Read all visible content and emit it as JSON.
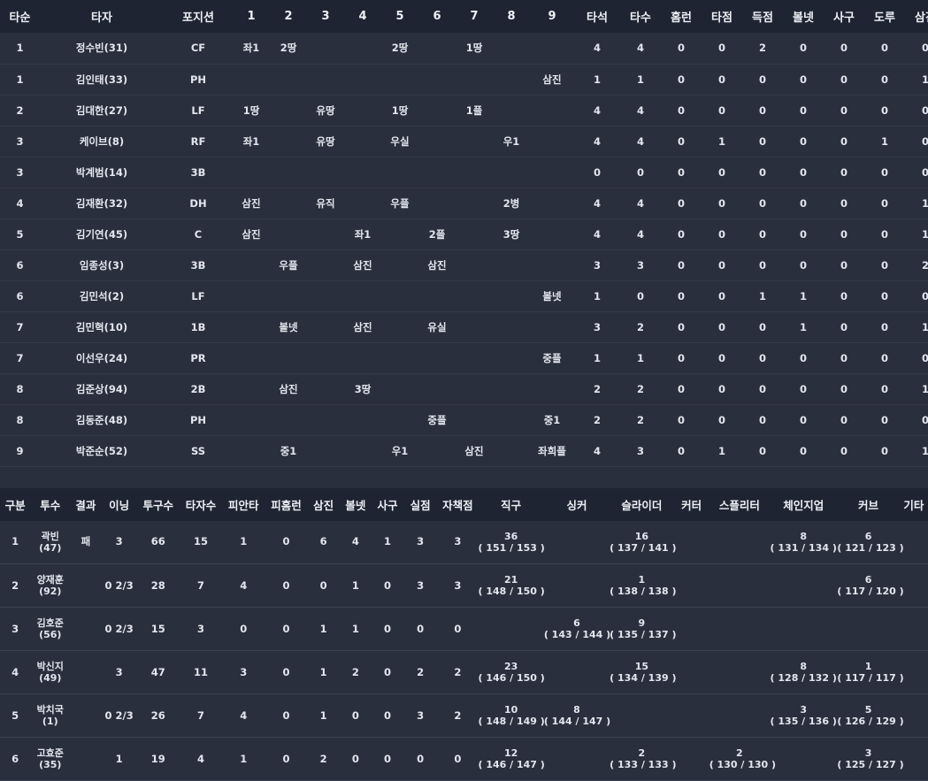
{
  "colors": {
    "background": "#2a2f3d",
    "header": "#1f2433",
    "highlight": "#e12424"
  },
  "batting": {
    "headers": [
      "타순",
      "타자",
      "포지션",
      "1",
      "2",
      "3",
      "4",
      "5",
      "6",
      "7",
      "8",
      "9",
      "타석",
      "타수",
      "홈런",
      "타점",
      "득점",
      "볼넷",
      "사구",
      "도루",
      "삼진"
    ],
    "rows": [
      {
        "order": "1",
        "name": "정수빈(31)",
        "pos": "CF",
        "inn": [
          {
            "t": "좌1",
            "hit": true
          },
          {
            "t": "2땅"
          },
          {
            "t": ""
          },
          {
            "t": ""
          },
          {
            "t": "2땅"
          },
          {
            "t": ""
          },
          {
            "t": "1땅"
          },
          {
            "t": ""
          },
          {
            "t": ""
          }
        ],
        "stats": [
          "4",
          "4",
          "0",
          "0",
          "2",
          "0",
          "0",
          "0",
          "0"
        ]
      },
      {
        "order": "1",
        "name": "김인태(33)",
        "pos": "PH",
        "inn": [
          {
            "t": ""
          },
          {
            "t": ""
          },
          {
            "t": ""
          },
          {
            "t": ""
          },
          {
            "t": ""
          },
          {
            "t": ""
          },
          {
            "t": ""
          },
          {
            "t": ""
          },
          {
            "t": "삼진"
          }
        ],
        "stats": [
          "1",
          "1",
          "0",
          "0",
          "0",
          "0",
          "0",
          "0",
          "1"
        ]
      },
      {
        "order": "2",
        "name": "김대한(27)",
        "pos": "LF",
        "inn": [
          {
            "t": "1땅"
          },
          {
            "t": ""
          },
          {
            "t": "유땅"
          },
          {
            "t": ""
          },
          {
            "t": "1땅"
          },
          {
            "t": ""
          },
          {
            "t": "1플"
          },
          {
            "t": ""
          },
          {
            "t": ""
          }
        ],
        "stats": [
          "4",
          "4",
          "0",
          "0",
          "0",
          "0",
          "0",
          "0",
          "0"
        ]
      },
      {
        "order": "3",
        "name": "케이브(8)",
        "pos": "RF",
        "inn": [
          {
            "t": "좌1",
            "hit": true
          },
          {
            "t": ""
          },
          {
            "t": "유땅"
          },
          {
            "t": ""
          },
          {
            "t": "우실"
          },
          {
            "t": ""
          },
          {
            "t": ""
          },
          {
            "t": "우1",
            "hit": true
          },
          {
            "t": ""
          }
        ],
        "stats": [
          "4",
          "4",
          "0",
          "1",
          "0",
          "0",
          "0",
          "1",
          "0"
        ]
      },
      {
        "order": "3",
        "name": "박계범(14)",
        "pos": "3B",
        "inn": [
          {
            "t": ""
          },
          {
            "t": ""
          },
          {
            "t": ""
          },
          {
            "t": ""
          },
          {
            "t": ""
          },
          {
            "t": ""
          },
          {
            "t": ""
          },
          {
            "t": ""
          },
          {
            "t": ""
          }
        ],
        "stats": [
          "0",
          "0",
          "0",
          "0",
          "0",
          "0",
          "0",
          "0",
          "0"
        ]
      },
      {
        "order": "4",
        "name": "김재환(32)",
        "pos": "DH",
        "inn": [
          {
            "t": "삼진"
          },
          {
            "t": ""
          },
          {
            "t": "유직"
          },
          {
            "t": ""
          },
          {
            "t": "우플"
          },
          {
            "t": ""
          },
          {
            "t": ""
          },
          {
            "t": "2병"
          },
          {
            "t": ""
          }
        ],
        "stats": [
          "4",
          "4",
          "0",
          "0",
          "0",
          "0",
          "0",
          "0",
          "1"
        ]
      },
      {
        "order": "5",
        "name": "김기연(45)",
        "pos": "C",
        "inn": [
          {
            "t": "삼진"
          },
          {
            "t": ""
          },
          {
            "t": ""
          },
          {
            "t": "좌1",
            "hit": true
          },
          {
            "t": ""
          },
          {
            "t": "2플"
          },
          {
            "t": ""
          },
          {
            "t": "3땅"
          },
          {
            "t": ""
          }
        ],
        "stats": [
          "4",
          "4",
          "0",
          "0",
          "0",
          "0",
          "0",
          "0",
          "1"
        ]
      },
      {
        "order": "6",
        "name": "임종성(3)",
        "pos": "3B",
        "inn": [
          {
            "t": ""
          },
          {
            "t": "우플"
          },
          {
            "t": ""
          },
          {
            "t": "삼진"
          },
          {
            "t": ""
          },
          {
            "t": "삼진"
          },
          {
            "t": ""
          },
          {
            "t": ""
          },
          {
            "t": ""
          }
        ],
        "stats": [
          "3",
          "3",
          "0",
          "0",
          "0",
          "0",
          "0",
          "0",
          "2"
        ]
      },
      {
        "order": "6",
        "name": "김민석(2)",
        "pos": "LF",
        "inn": [
          {
            "t": ""
          },
          {
            "t": ""
          },
          {
            "t": ""
          },
          {
            "t": ""
          },
          {
            "t": ""
          },
          {
            "t": ""
          },
          {
            "t": ""
          },
          {
            "t": ""
          },
          {
            "t": "볼넷"
          }
        ],
        "stats": [
          "1",
          "0",
          "0",
          "0",
          "1",
          "1",
          "0",
          "0",
          "0"
        ]
      },
      {
        "order": "7",
        "name": "김민혁(10)",
        "pos": "1B",
        "inn": [
          {
            "t": ""
          },
          {
            "t": "볼넷"
          },
          {
            "t": ""
          },
          {
            "t": "삼진"
          },
          {
            "t": ""
          },
          {
            "t": "유실"
          },
          {
            "t": ""
          },
          {
            "t": ""
          },
          {
            "t": ""
          }
        ],
        "stats": [
          "3",
          "2",
          "0",
          "0",
          "0",
          "1",
          "0",
          "0",
          "1"
        ]
      },
      {
        "order": "7",
        "name": "이선우(24)",
        "pos": "PR",
        "inn": [
          {
            "t": ""
          },
          {
            "t": ""
          },
          {
            "t": ""
          },
          {
            "t": ""
          },
          {
            "t": ""
          },
          {
            "t": ""
          },
          {
            "t": ""
          },
          {
            "t": ""
          },
          {
            "t": "중플"
          }
        ],
        "stats": [
          "1",
          "1",
          "0",
          "0",
          "0",
          "0",
          "0",
          "0",
          "0"
        ]
      },
      {
        "order": "8",
        "name": "김준상(94)",
        "pos": "2B",
        "inn": [
          {
            "t": ""
          },
          {
            "t": "삼진"
          },
          {
            "t": ""
          },
          {
            "t": "3땅"
          },
          {
            "t": ""
          },
          {
            "t": ""
          },
          {
            "t": ""
          },
          {
            "t": ""
          },
          {
            "t": ""
          }
        ],
        "stats": [
          "2",
          "2",
          "0",
          "0",
          "0",
          "0",
          "0",
          "0",
          "1"
        ]
      },
      {
        "order": "8",
        "name": "김동준(48)",
        "pos": "PH",
        "inn": [
          {
            "t": ""
          },
          {
            "t": ""
          },
          {
            "t": ""
          },
          {
            "t": ""
          },
          {
            "t": ""
          },
          {
            "t": "중플"
          },
          {
            "t": ""
          },
          {
            "t": ""
          },
          {
            "t": "중1",
            "hit": true
          }
        ],
        "stats": [
          "2",
          "2",
          "0",
          "0",
          "0",
          "0",
          "0",
          "0",
          "0"
        ]
      },
      {
        "order": "9",
        "name": "박준순(52)",
        "pos": "SS",
        "inn": [
          {
            "t": ""
          },
          {
            "t": "중1",
            "hit": true
          },
          {
            "t": ""
          },
          {
            "t": ""
          },
          {
            "t": "우1",
            "hit": true
          },
          {
            "t": ""
          },
          {
            "t": "삼진"
          },
          {
            "t": ""
          },
          {
            "t": "좌희플"
          }
        ],
        "stats": [
          "4",
          "3",
          "0",
          "1",
          "0",
          "0",
          "0",
          "0",
          "1"
        ]
      }
    ]
  },
  "pitching": {
    "headers": [
      "구분",
      "투수",
      "결과",
      "이닝",
      "투구수",
      "타자수",
      "피안타",
      "피홈런",
      "삼진",
      "볼넷",
      "사구",
      "실점",
      "자책점",
      "직구",
      "싱커",
      "슬라이더",
      "커터",
      "스플리터",
      "체인지업",
      "커브",
      "기타"
    ],
    "rows": [
      {
        "no": "1",
        "name": "곽빈",
        "num": "(47)",
        "result": "패",
        "inning": "3",
        "stats": [
          "66",
          "15",
          "1",
          "0",
          "6",
          "4",
          "1",
          "3",
          "3"
        ],
        "pitches": [
          {
            "c": "36",
            "s": "( 151 / 153 )"
          },
          {
            "c": "",
            "s": ""
          },
          {
            "c": "16",
            "s": "( 137 / 141 )"
          },
          {
            "c": "",
            "s": ""
          },
          {
            "c": "",
            "s": ""
          },
          {
            "c": "8",
            "s": "( 131 / 134 )"
          },
          {
            "c": "6",
            "s": "( 121 / 123 )"
          },
          {
            "c": "",
            "s": ""
          }
        ]
      },
      {
        "no": "2",
        "name": "양재훈",
        "num": "(92)",
        "result": "",
        "inning": "0 2/3",
        "stats": [
          "28",
          "7",
          "4",
          "0",
          "0",
          "1",
          "0",
          "3",
          "3"
        ],
        "pitches": [
          {
            "c": "21",
            "s": "( 148 / 150 )"
          },
          {
            "c": "",
            "s": ""
          },
          {
            "c": "1",
            "s": "( 138 / 138 )"
          },
          {
            "c": "",
            "s": ""
          },
          {
            "c": "",
            "s": ""
          },
          {
            "c": "",
            "s": ""
          },
          {
            "c": "6",
            "s": "( 117 / 120 )"
          },
          {
            "c": "",
            "s": ""
          }
        ]
      },
      {
        "no": "3",
        "name": "김호준",
        "num": "(56)",
        "result": "",
        "inning": "0 2/3",
        "stats": [
          "15",
          "3",
          "0",
          "0",
          "1",
          "1",
          "0",
          "0",
          "0"
        ],
        "pitches": [
          {
            "c": "",
            "s": ""
          },
          {
            "c": "6",
            "s": "( 143 / 144 )"
          },
          {
            "c": "9",
            "s": "( 135 / 137 )"
          },
          {
            "c": "",
            "s": ""
          },
          {
            "c": "",
            "s": ""
          },
          {
            "c": "",
            "s": ""
          },
          {
            "c": "",
            "s": ""
          },
          {
            "c": "",
            "s": ""
          }
        ]
      },
      {
        "no": "4",
        "name": "박신지",
        "num": "(49)",
        "result": "",
        "inning": "3",
        "stats": [
          "47",
          "11",
          "3",
          "0",
          "1",
          "2",
          "0",
          "2",
          "2"
        ],
        "pitches": [
          {
            "c": "23",
            "s": "( 146 / 150 )"
          },
          {
            "c": "",
            "s": ""
          },
          {
            "c": "15",
            "s": "( 134 / 139 )"
          },
          {
            "c": "",
            "s": ""
          },
          {
            "c": "",
            "s": ""
          },
          {
            "c": "8",
            "s": "( 128 / 132 )"
          },
          {
            "c": "1",
            "s": "( 117 / 117 )"
          },
          {
            "c": "",
            "s": ""
          }
        ]
      },
      {
        "no": "5",
        "name": "박치국",
        "num": "(1)",
        "result": "",
        "inning": "0 2/3",
        "stats": [
          "26",
          "7",
          "4",
          "0",
          "1",
          "0",
          "0",
          "3",
          "2"
        ],
        "pitches": [
          {
            "c": "10",
            "s": "( 148 / 149 )"
          },
          {
            "c": "8",
            "s": "( 144 / 147 )"
          },
          {
            "c": "",
            "s": ""
          },
          {
            "c": "",
            "s": ""
          },
          {
            "c": "",
            "s": ""
          },
          {
            "c": "3",
            "s": "( 135 / 136 )"
          },
          {
            "c": "5",
            "s": "( 126 / 129 )"
          },
          {
            "c": "",
            "s": ""
          }
        ]
      },
      {
        "no": "6",
        "name": "고효준",
        "num": "(35)",
        "result": "",
        "inning": "1",
        "stats": [
          "19",
          "4",
          "1",
          "0",
          "2",
          "0",
          "0",
          "0",
          "0"
        ],
        "pitches": [
          {
            "c": "12",
            "s": "( 146 / 147 )"
          },
          {
            "c": "",
            "s": ""
          },
          {
            "c": "2",
            "s": "( 133 / 133 )"
          },
          {
            "c": "",
            "s": ""
          },
          {
            "c": "2",
            "s": "( 130 / 130 )"
          },
          {
            "c": "",
            "s": ""
          },
          {
            "c": "3",
            "s": "( 125 / 127 )"
          },
          {
            "c": "",
            "s": ""
          }
        ]
      }
    ]
  }
}
